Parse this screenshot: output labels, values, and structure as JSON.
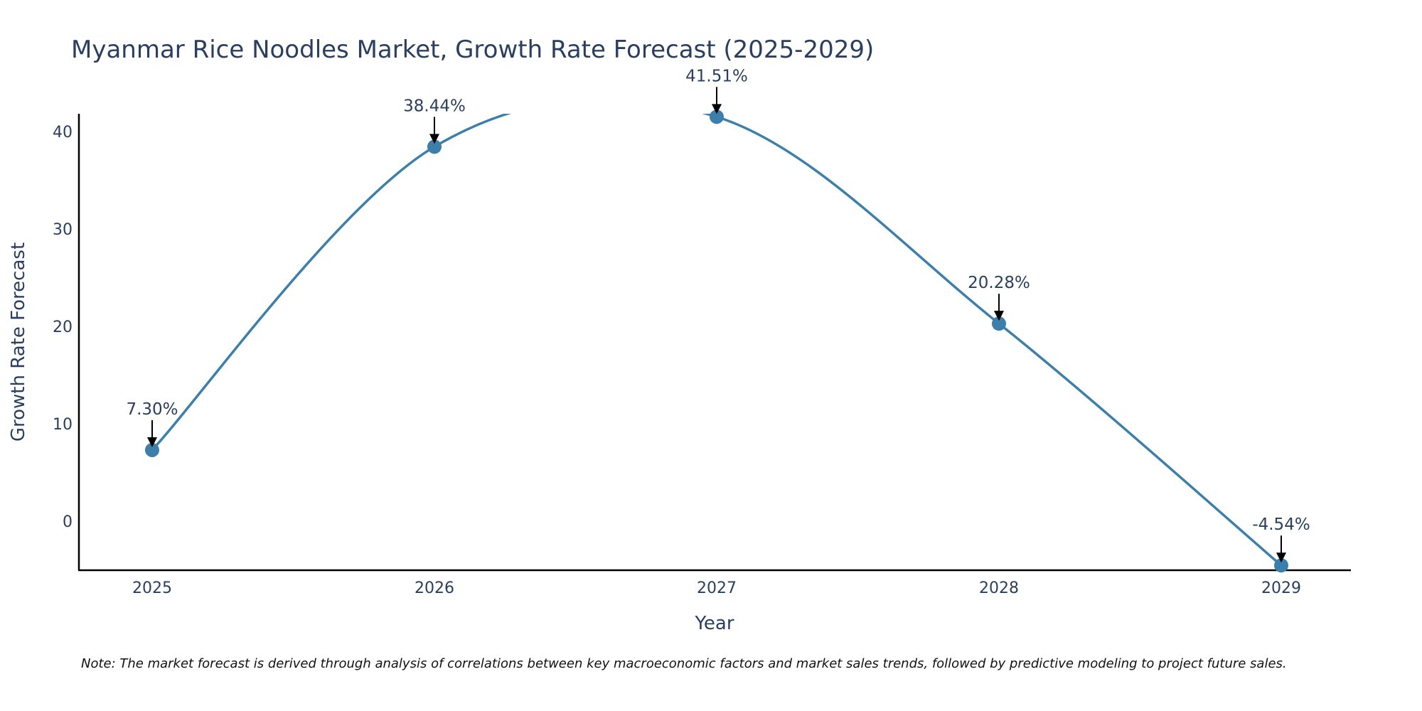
{
  "chart_data": {
    "type": "line",
    "title": "Myanmar Rice Noodles Market, Growth Rate Forecast (2025-2029)",
    "xlabel": "Year",
    "ylabel": "Growth Rate Forecast",
    "categories": [
      "2025",
      "2026",
      "2027",
      "2028",
      "2029"
    ],
    "values": [
      7.3,
      38.44,
      41.51,
      20.28,
      -4.54
    ],
    "data_labels": [
      "7.30%",
      "38.44%",
      "41.51%",
      "20.28%",
      "-4.54%"
    ],
    "ylim": [
      -5.2,
      42
    ],
    "yticks": [
      0,
      10,
      20,
      30,
      40
    ],
    "grid": false,
    "line_color": "#3d7fab",
    "marker_color": "#3d7fab",
    "note": "Note: The market forecast is derived through analysis of correlations between key macroeconomic factors and market sales trends, followed by predictive modeling to project future sales."
  }
}
